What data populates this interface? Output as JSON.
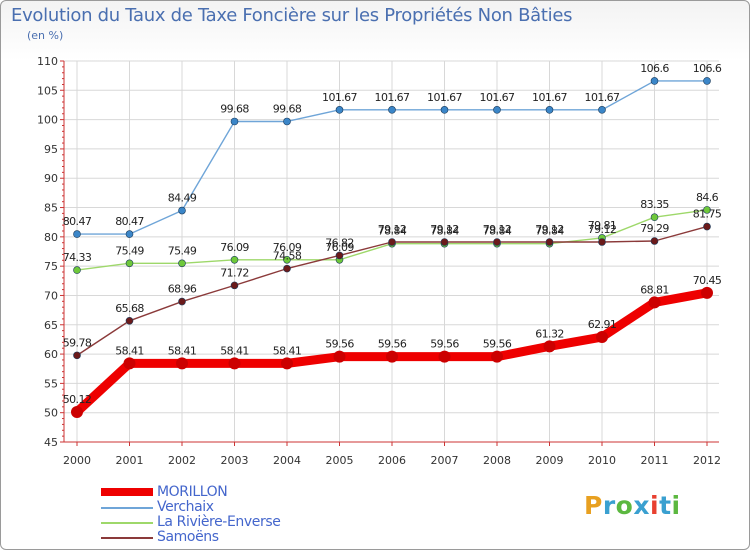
{
  "header": {
    "title": "Evolution du Taux de Taxe Foncière sur les Propriétés Non Bâties",
    "unit": "(en %)"
  },
  "logo": {
    "text": "Proxiti",
    "colors": [
      "#e8a020",
      "#3aa0d0",
      "#5cb840",
      "#3aa0d0",
      "#e84030",
      "#3aa0d0",
      "#5cb840"
    ]
  },
  "chart_data": {
    "type": "line",
    "title": "Evolution du Taux de Taxe Foncière sur les Propriétés Non Bâties",
    "ylabel": "(en %)",
    "xlabel": "",
    "x": [
      "2000",
      "2001",
      "2002",
      "2003",
      "2004",
      "2005",
      "2006",
      "2007",
      "2008",
      "2009",
      "2010",
      "2011",
      "2012"
    ],
    "yticks": [
      "45",
      "50",
      "55",
      "60",
      "65",
      "70",
      "75",
      "80",
      "85",
      "90",
      "95",
      "100",
      "105",
      "110"
    ],
    "ylim": [
      45,
      110
    ],
    "grid": true,
    "legend_position": "bottom-left",
    "series": [
      {
        "name": "MORILLON",
        "color": "#ee0000",
        "point_color": "#cc0000",
        "emphasis": "bold",
        "values": [
          50.12,
          58.41,
          58.41,
          58.41,
          58.41,
          59.56,
          59.56,
          59.56,
          59.56,
          61.32,
          62.91,
          68.81,
          70.45
        ],
        "labels": [
          "50.12",
          "58.41",
          "58.41",
          "58.41",
          "58.41",
          "59.56",
          "59.56",
          "59.56",
          "59.56",
          "61.32",
          "62.91",
          "68.81",
          "70.45"
        ]
      },
      {
        "name": "Verchaix",
        "color": "#6fa5d8",
        "point_color": "#3b86c8",
        "emphasis": "thin",
        "values": [
          80.47,
          80.47,
          84.49,
          99.68,
          99.68,
          101.67,
          101.67,
          101.67,
          101.67,
          101.67,
          101.67,
          106.6,
          106.6
        ],
        "labels": [
          "80.47",
          "80.47",
          "84.49",
          "99.68",
          "99.68",
          "101.67",
          "101.67",
          "101.67",
          "101.67",
          "101.67",
          "101.67",
          "106.6",
          "106.6"
        ]
      },
      {
        "name": "La Rivière-Enverse",
        "color": "#9ed86a",
        "point_color": "#6ec83a",
        "emphasis": "thin",
        "values": [
          74.33,
          75.49,
          75.49,
          76.09,
          76.09,
          76.09,
          78.84,
          78.84,
          78.84,
          78.84,
          79.81,
          83.35,
          84.6
        ],
        "labels": [
          "74.33",
          "75.49",
          "75.49",
          "76.09",
          "76.09",
          "76.09",
          "78.84",
          "78.84",
          "78.84",
          "78.84",
          "79.81",
          "83.35",
          "84.6"
        ]
      },
      {
        "name": "Samoëns",
        "color": "#8b3a3a",
        "point_color": "#6b1a1a",
        "emphasis": "thin",
        "values": [
          59.78,
          65.68,
          68.96,
          71.72,
          74.58,
          76.82,
          79.12,
          79.12,
          79.12,
          79.12,
          79.12,
          79.29,
          81.75
        ],
        "labels": [
          "59.78",
          "65.68",
          "68.96",
          "71.72",
          "74.58",
          "76.82",
          "79.12",
          "79.12",
          "79.12",
          "79.12",
          "79.12",
          "79.29",
          "81.75"
        ]
      }
    ]
  }
}
